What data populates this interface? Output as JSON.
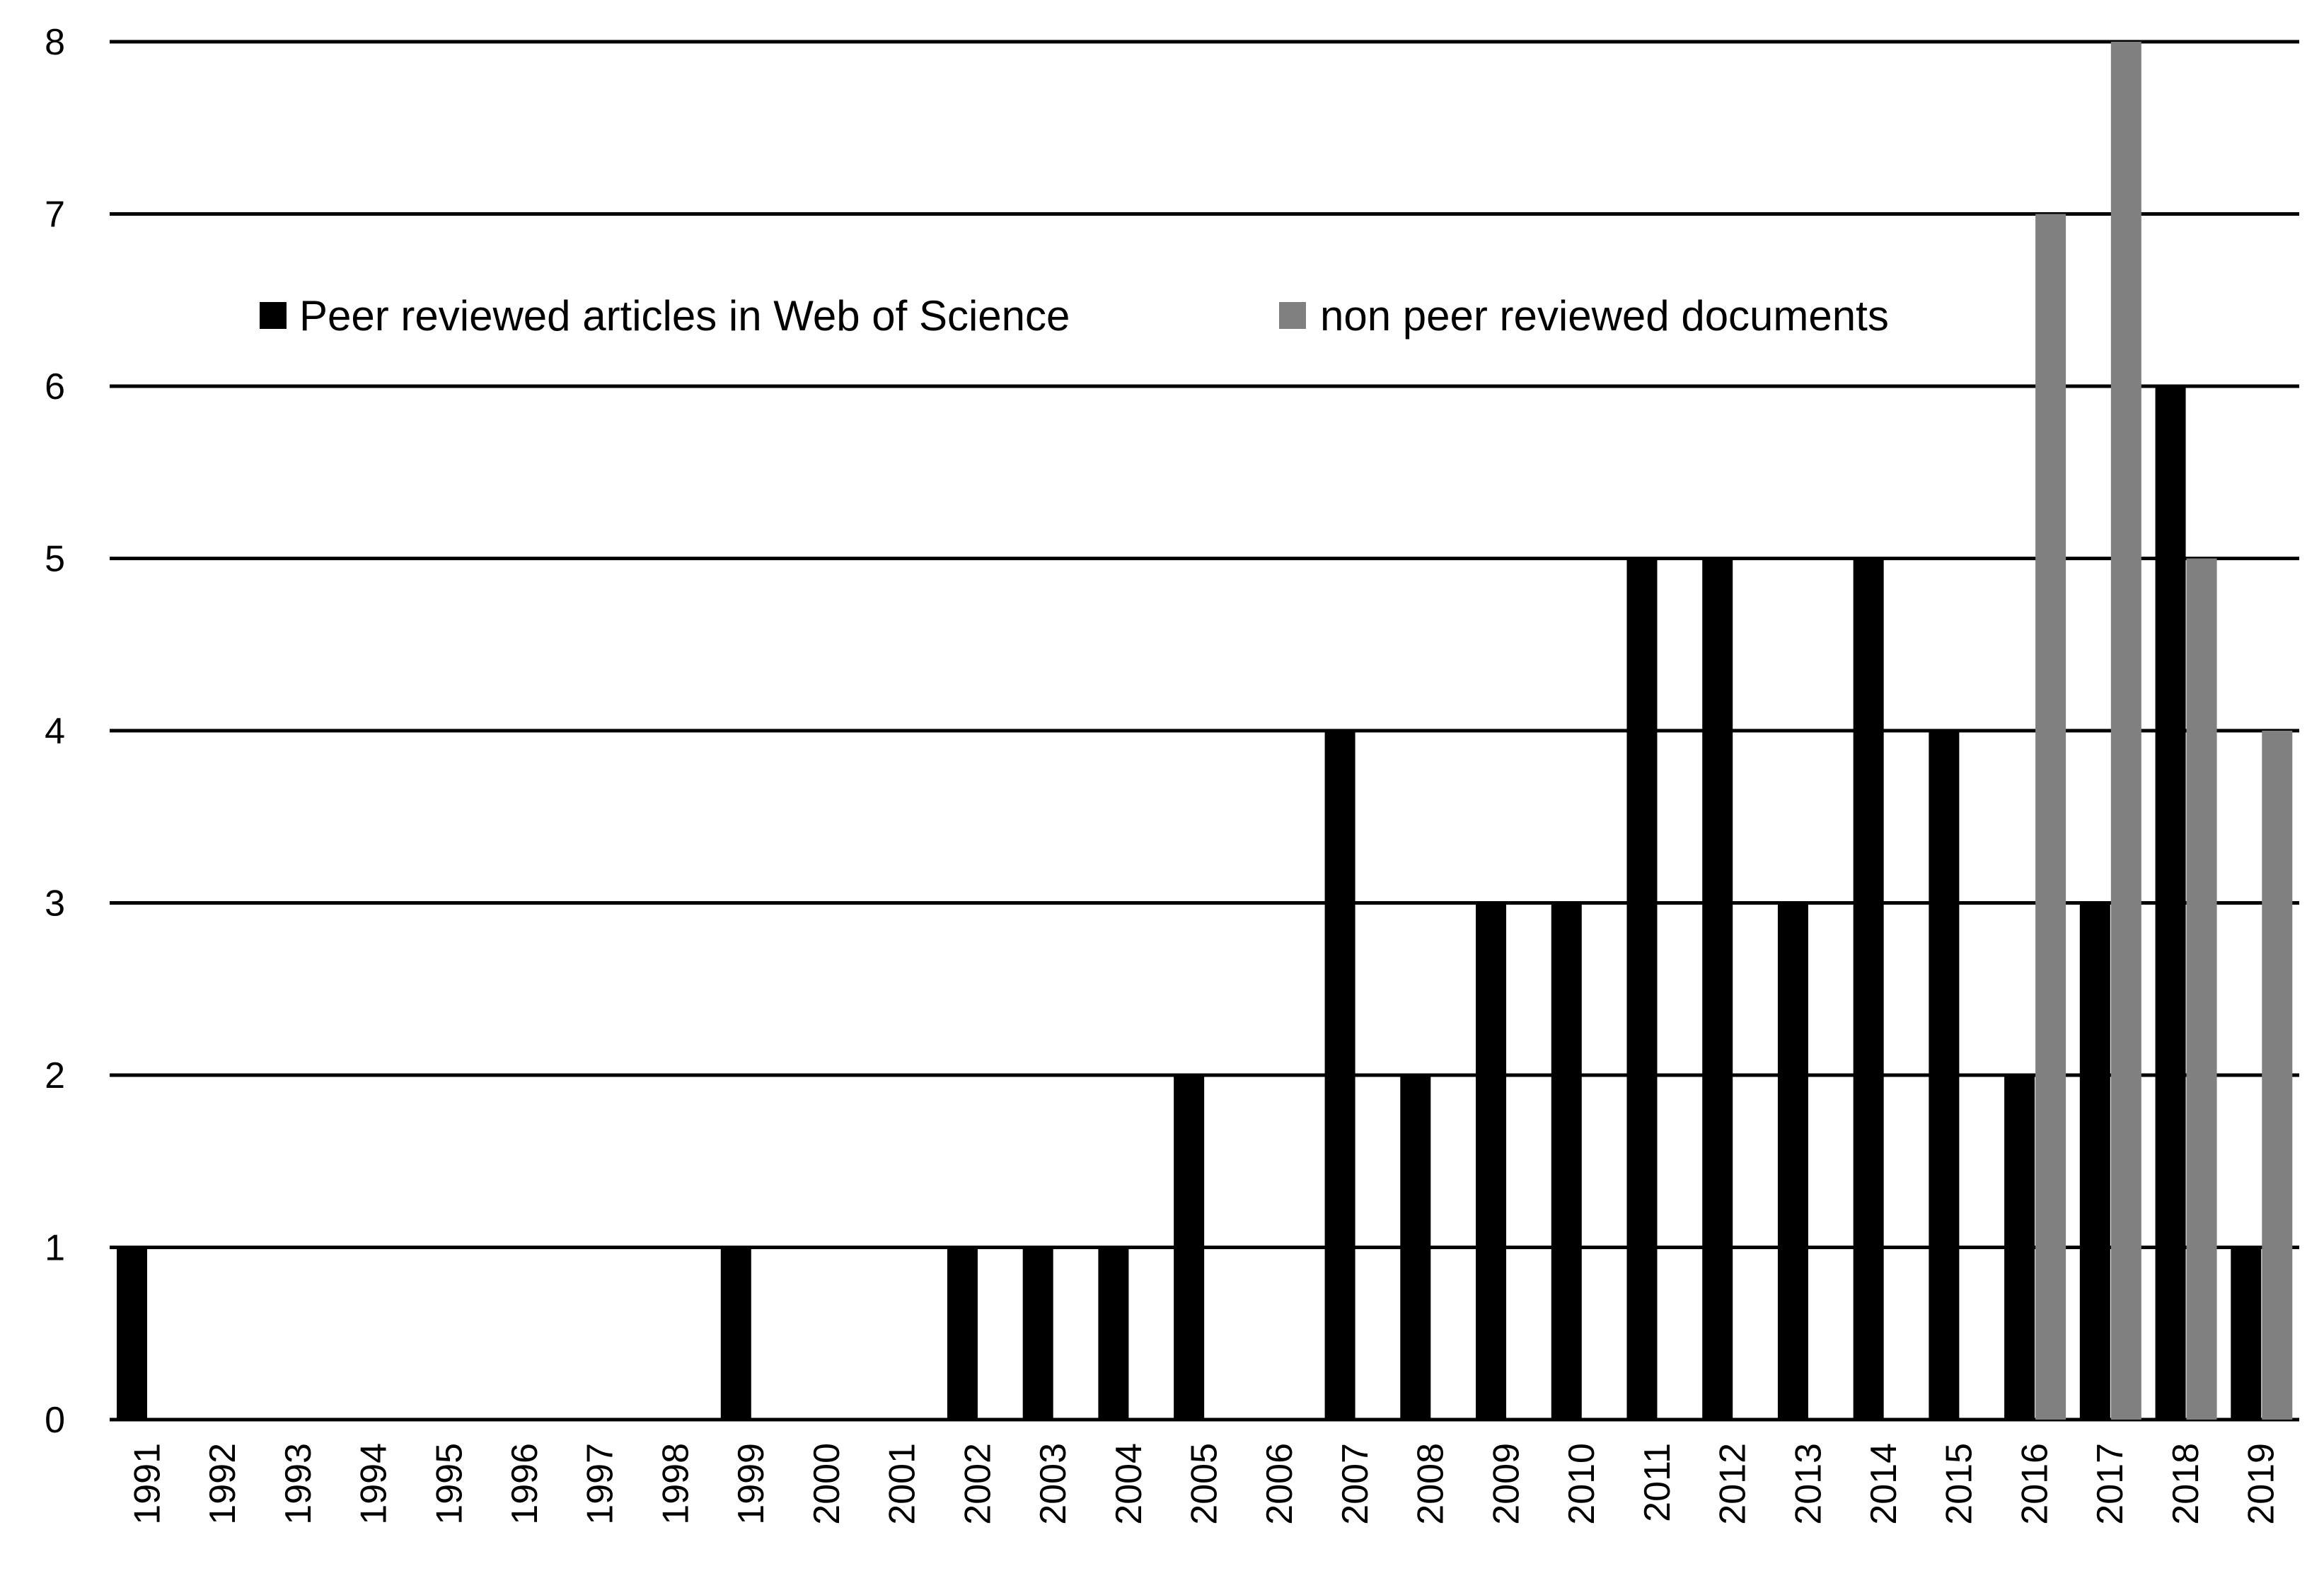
{
  "chart_data": {
    "type": "bar",
    "categories": [
      "1991",
      "1992",
      "1993",
      "1994",
      "1995",
      "1996",
      "1997",
      "1998",
      "1999",
      "2000",
      "2001",
      "2002",
      "2003",
      "2004",
      "2005",
      "2006",
      "2007",
      "2008",
      "2009",
      "2010",
      "2011",
      "2012",
      "2013",
      "2014",
      "2015",
      "2016",
      "2017",
      "2018",
      "2019"
    ],
    "series": [
      {
        "name": "Peer reviewed articles in Web of Science",
        "color": "#000000",
        "values": [
          1,
          0,
          0,
          0,
          0,
          0,
          0,
          0,
          1,
          0,
          0,
          1,
          1,
          1,
          2,
          0,
          4,
          2,
          3,
          3,
          5,
          5,
          3,
          5,
          4,
          2,
          3,
          6,
          1
        ]
      },
      {
        "name": "non peer reviewed documents",
        "color": "#808080",
        "values": [
          0,
          0,
          0,
          0,
          0,
          0,
          0,
          0,
          0,
          0,
          0,
          0,
          0,
          0,
          0,
          0,
          0,
          0,
          0,
          0,
          0,
          0,
          0,
          0,
          0,
          7,
          8,
          5,
          4
        ]
      }
    ],
    "yticks": [
      "0",
      "1",
      "2",
      "3",
      "4",
      "5",
      "6",
      "7",
      "8"
    ],
    "ylim": [
      0,
      8
    ],
    "grid": true,
    "legend_position": "top"
  }
}
